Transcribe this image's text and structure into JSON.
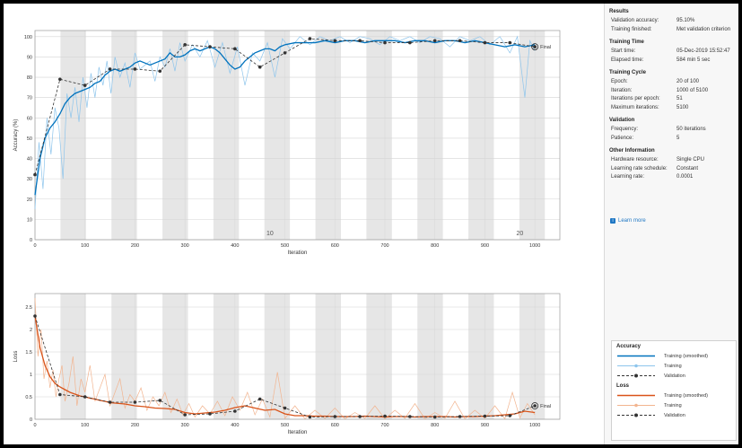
{
  "chart_data": [
    {
      "type": "line",
      "title": "",
      "xlabel": "Iteration",
      "ylabel": "Accuracy (%)",
      "xlim": [
        0,
        1050
      ],
      "ylim": [
        0,
        103
      ],
      "xticks": [
        0,
        100,
        200,
        300,
        400,
        500,
        600,
        700,
        800,
        900,
        1000
      ],
      "yticks": [
        0,
        10,
        20,
        30,
        40,
        50,
        60,
        70,
        80,
        90,
        100
      ],
      "epoch_markers": [
        {
          "x": 470,
          "label": "10"
        },
        {
          "x": 970,
          "label": "20"
        }
      ],
      "final_label": "Final",
      "grid": true,
      "series": [
        {
          "name": "Training (smoothed)",
          "x": [
            0,
            10,
            20,
            30,
            40,
            50,
            60,
            70,
            80,
            90,
            100,
            110,
            120,
            130,
            140,
            150,
            160,
            170,
            180,
            190,
            200,
            210,
            220,
            230,
            240,
            250,
            260,
            270,
            280,
            290,
            300,
            310,
            320,
            330,
            340,
            350,
            360,
            370,
            380,
            390,
            400,
            410,
            420,
            430,
            440,
            450,
            460,
            470,
            480,
            490,
            500,
            520,
            540,
            560,
            580,
            600,
            620,
            640,
            660,
            680,
            700,
            720,
            740,
            760,
            780,
            800,
            820,
            840,
            860,
            880,
            900,
            920,
            940,
            960,
            980,
            1000
          ],
          "values": [
            22,
            40,
            50,
            55,
            58,
            62,
            67,
            70,
            72,
            73,
            74,
            75,
            77,
            78,
            81,
            83,
            84,
            83,
            84,
            85,
            87,
            88,
            87,
            86,
            87,
            88,
            89,
            92,
            90,
            90,
            91,
            93,
            94,
            93,
            94,
            95,
            94,
            92,
            89,
            86,
            84,
            85,
            88,
            90,
            92,
            93,
            94,
            94,
            93,
            95,
            96,
            97,
            97,
            97,
            98,
            97,
            98,
            98,
            97,
            98,
            98,
            98,
            97,
            98,
            98,
            97,
            98,
            98,
            97,
            98,
            97,
            96,
            95,
            96,
            95,
            96
          ]
        },
        {
          "name": "Training",
          "x": [
            0,
            8,
            16,
            24,
            32,
            40,
            48,
            56,
            64,
            72,
            80,
            88,
            96,
            104,
            112,
            120,
            128,
            136,
            144,
            152,
            160,
            170,
            180,
            190,
            200,
            210,
            220,
            230,
            240,
            250,
            260,
            270,
            280,
            290,
            300,
            315,
            330,
            345,
            360,
            375,
            390,
            405,
            420,
            435,
            450,
            465,
            480,
            495,
            510,
            530,
            550,
            570,
            590,
            610,
            630,
            650,
            670,
            690,
            710,
            730,
            750,
            770,
            790,
            810,
            830,
            850,
            870,
            890,
            910,
            930,
            950,
            965,
            980,
            990,
            1000
          ],
          "values": [
            15,
            48,
            25,
            60,
            42,
            65,
            55,
            30,
            72,
            60,
            75,
            58,
            80,
            65,
            82,
            70,
            85,
            76,
            88,
            72,
            90,
            80,
            87,
            75,
            92,
            84,
            86,
            88,
            78,
            90,
            85,
            94,
            83,
            97,
            88,
            96,
            90,
            98,
            85,
            97,
            82,
            95,
            76,
            92,
            88,
            97,
            80,
            99,
            94,
            100,
            96,
            100,
            98,
            100,
            97,
            100,
            99,
            96,
            100,
            98,
            100,
            97,
            100,
            99,
            95,
            100,
            98,
            100,
            96,
            100,
            92,
            100,
            70,
            98,
            93
          ]
        },
        {
          "name": "Validation",
          "x": [
            0,
            50,
            100,
            150,
            200,
            250,
            300,
            350,
            400,
            450,
            500,
            550,
            600,
            650,
            700,
            750,
            800,
            850,
            900,
            950,
            1000
          ],
          "values": [
            32,
            79,
            76,
            84,
            84,
            83,
            96,
            95,
            94,
            85,
            92,
            99,
            98,
            98,
            97,
            97,
            98,
            98,
            97,
            97,
            95
          ]
        }
      ]
    },
    {
      "type": "line",
      "title": "",
      "xlabel": "Iteration",
      "ylabel": "Loss",
      "xlim": [
        0,
        1050
      ],
      "ylim": [
        0,
        2.8
      ],
      "xticks": [
        0,
        100,
        200,
        300,
        400,
        500,
        600,
        700,
        800,
        900,
        1000
      ],
      "yticks": [
        0,
        0.5,
        1,
        1.5,
        2,
        2.5
      ],
      "final_label": "Final",
      "grid": true,
      "series": [
        {
          "name": "Training (smoothed)",
          "x": [
            0,
            10,
            20,
            30,
            40,
            50,
            60,
            70,
            80,
            90,
            100,
            110,
            120,
            130,
            140,
            150,
            160,
            170,
            180,
            190,
            200,
            220,
            240,
            260,
            280,
            300,
            320,
            340,
            360,
            380,
            400,
            420,
            440,
            460,
            480,
            500,
            520,
            540,
            560,
            580,
            600,
            620,
            640,
            660,
            680,
            700,
            720,
            740,
            760,
            780,
            800,
            820,
            840,
            860,
            880,
            900,
            920,
            940,
            960,
            980,
            1000
          ],
          "values": [
            2.3,
            1.6,
            1.2,
            0.95,
            0.8,
            0.72,
            0.66,
            0.6,
            0.56,
            0.52,
            0.5,
            0.47,
            0.45,
            0.42,
            0.4,
            0.37,
            0.36,
            0.35,
            0.34,
            0.32,
            0.3,
            0.28,
            0.25,
            0.24,
            0.22,
            0.15,
            0.12,
            0.14,
            0.16,
            0.2,
            0.26,
            0.3,
            0.25,
            0.2,
            0.22,
            0.12,
            0.08,
            0.08,
            0.07,
            0.07,
            0.06,
            0.06,
            0.06,
            0.07,
            0.06,
            0.05,
            0.06,
            0.06,
            0.05,
            0.06,
            0.06,
            0.06,
            0.05,
            0.06,
            0.06,
            0.07,
            0.08,
            0.1,
            0.12,
            0.18,
            0.15
          ]
        },
        {
          "name": "Training",
          "x": [
            0,
            6,
            12,
            18,
            24,
            30,
            36,
            42,
            48,
            54,
            60,
            68,
            76,
            84,
            92,
            100,
            110,
            120,
            130,
            140,
            150,
            160,
            170,
            180,
            190,
            200,
            212,
            224,
            236,
            248,
            260,
            272,
            284,
            296,
            308,
            320,
            335,
            350,
            365,
            380,
            395,
            410,
            425,
            440,
            455,
            470,
            485,
            500,
            520,
            540,
            560,
            580,
            600,
            620,
            640,
            660,
            680,
            700,
            720,
            740,
            760,
            780,
            800,
            820,
            840,
            860,
            880,
            900,
            920,
            940,
            955,
            970,
            985,
            1000
          ],
          "values": [
            2.7,
            1.4,
            2.0,
            0.9,
            1.3,
            0.7,
            1.1,
            0.5,
            0.9,
            1.2,
            0.4,
            0.8,
            1.4,
            0.3,
            0.9,
            0.6,
            1.2,
            0.4,
            0.7,
            1.0,
            0.3,
            0.6,
            0.9,
            0.25,
            0.55,
            0.4,
            0.7,
            0.2,
            0.5,
            0.3,
            0.6,
            0.15,
            0.45,
            0.1,
            0.35,
            0.05,
            0.3,
            0.12,
            0.4,
            0.08,
            0.5,
            0.2,
            0.6,
            0.1,
            0.45,
            0.05,
            1.05,
            0.02,
            0.3,
            0.01,
            0.2,
            0.02,
            0.25,
            0.01,
            0.15,
            0.02,
            0.3,
            0.01,
            0.2,
            0.02,
            0.35,
            0.01,
            0.15,
            0.02,
            0.4,
            0.01,
            0.2,
            0.02,
            0.3,
            0.01,
            0.6,
            0.03,
            0.35,
            0.1
          ]
        },
        {
          "name": "Validation",
          "x": [
            0,
            50,
            100,
            150,
            200,
            250,
            300,
            350,
            400,
            450,
            500,
            550,
            600,
            650,
            700,
            750,
            800,
            850,
            900,
            950,
            1000
          ],
          "values": [
            2.3,
            0.55,
            0.5,
            0.38,
            0.38,
            0.42,
            0.1,
            0.12,
            0.18,
            0.45,
            0.25,
            0.05,
            0.06,
            0.06,
            0.07,
            0.06,
            0.05,
            0.06,
            0.07,
            0.08,
            0.3
          ]
        }
      ]
    }
  ],
  "colors": {
    "accuracy_smoothed": "#0072bd",
    "accuracy_raw": "#8ec5ec",
    "loss_smoothed": "#d95319",
    "loss_raw": "#f2b48f",
    "validation": "#333333",
    "epoch_band": "#e6e6e6"
  },
  "panel": {
    "results": {
      "title": "Results",
      "rows": [
        {
          "k": "Validation accuracy:",
          "v": "95.10%"
        },
        {
          "k": "Training finished:",
          "v": "Met validation criterion"
        }
      ]
    },
    "time": {
      "title": "Training Time",
      "rows": [
        {
          "k": "Start time:",
          "v": "05-Dec-2019 15:52:47"
        },
        {
          "k": "Elapsed time:",
          "v": "584 min 5 sec"
        }
      ]
    },
    "cycle": {
      "title": "Training Cycle",
      "rows": [
        {
          "k": "Epoch:",
          "v": "20 of 100"
        },
        {
          "k": "Iteration:",
          "v": "1000 of 5100"
        },
        {
          "k": "Iterations per epoch:",
          "v": "51"
        },
        {
          "k": "Maximum iterations:",
          "v": "5100"
        }
      ]
    },
    "validation": {
      "title": "Validation",
      "rows": [
        {
          "k": "Frequency:",
          "v": "50 iterations"
        },
        {
          "k": "Patience:",
          "v": "5"
        }
      ]
    },
    "other": {
      "title": "Other Information",
      "rows": [
        {
          "k": "Hardware resource:",
          "v": "Single CPU"
        },
        {
          "k": "Learning rate schedule:",
          "v": "Constant"
        },
        {
          "k": "Learning rate:",
          "v": "0.0001"
        }
      ]
    },
    "learn_more": "Learn more"
  },
  "legend": {
    "accuracy_title": "Accuracy",
    "loss_title": "Loss",
    "smoothed": "Training (smoothed)",
    "training": "Training",
    "validation": "Validation"
  }
}
